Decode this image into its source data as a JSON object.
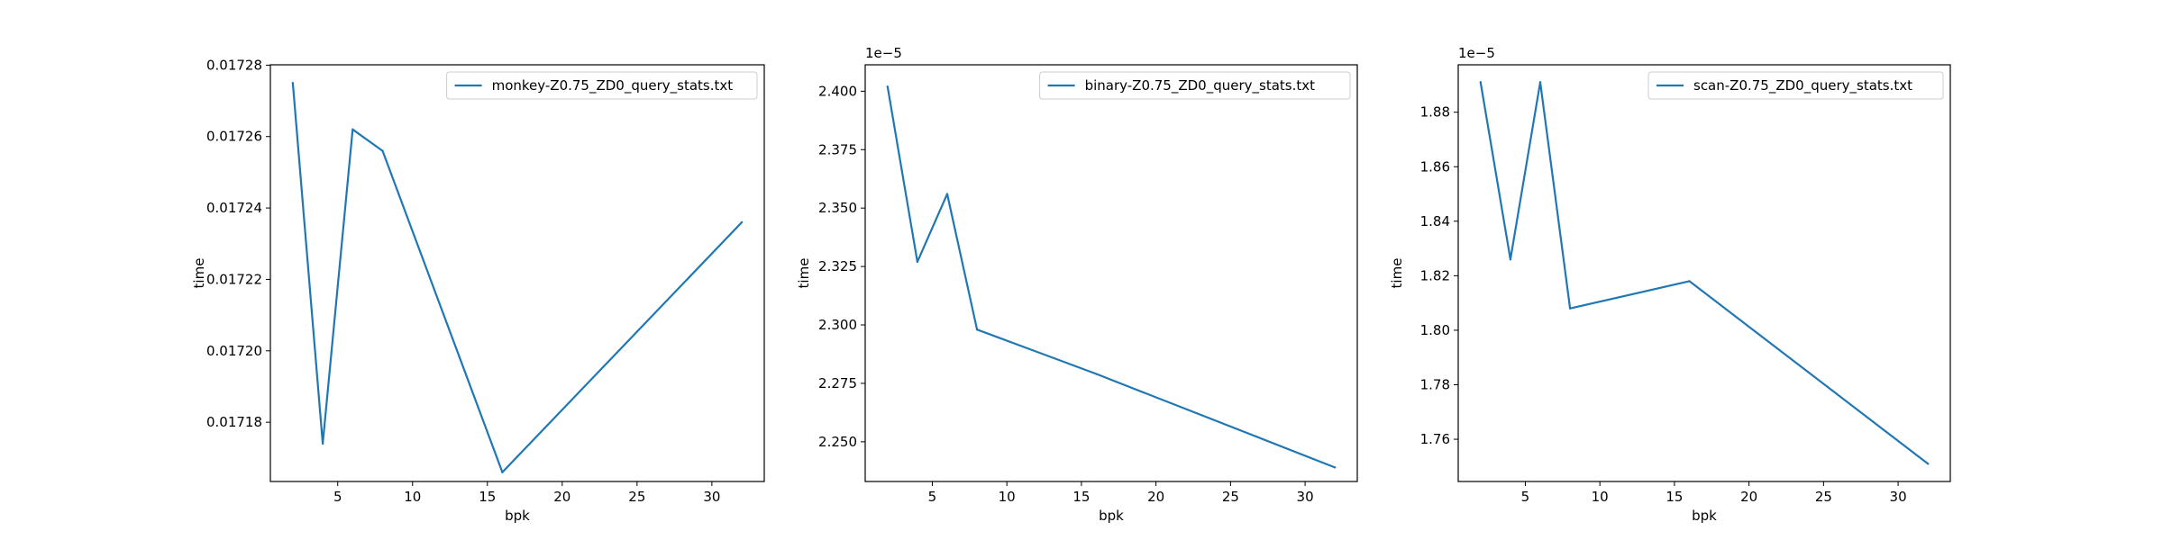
{
  "figure": {
    "background": "#ffffff",
    "line_color": "#1f77b4"
  },
  "chart_data": [
    {
      "type": "line",
      "xlabel": "bpk",
      "ylabel": "time",
      "xlim": [
        0.5,
        33.5
      ],
      "ylim": [
        0.0171634,
        0.0172801
      ],
      "x_ticks": [
        "5",
        "10",
        "15",
        "20",
        "25",
        "30"
      ],
      "x_tick_values": [
        5,
        10,
        15,
        20,
        25,
        30
      ],
      "y_ticks": [
        "0.01718",
        "0.01720",
        "0.01722",
        "0.01724",
        "0.01726",
        "0.01728"
      ],
      "y_tick_values": [
        0.01718,
        0.0172,
        0.01722,
        0.01724,
        0.01726,
        0.01728
      ],
      "offset_text": "",
      "legend_location": "upper right",
      "series": [
        {
          "name": "monkey-Z0.75_ZD0_query_stats.txt",
          "x": [
            2,
            4,
            6,
            8,
            16,
            32
          ],
          "y": [
            0.017275,
            0.017174,
            0.017262,
            0.017256,
            0.017166,
            0.017236
          ]
        }
      ]
    },
    {
      "type": "line",
      "xlabel": "bpk",
      "ylabel": "time",
      "xlim": [
        0.5,
        33.5
      ],
      "ylim": [
        2.233e-05,
        2.4113e-05
      ],
      "x_ticks": [
        "5",
        "10",
        "15",
        "20",
        "25",
        "30"
      ],
      "x_tick_values": [
        5,
        10,
        15,
        20,
        25,
        30
      ],
      "y_ticks": [
        "2.250",
        "2.275",
        "2.300",
        "2.325",
        "2.350",
        "2.375",
        "2.400"
      ],
      "y_tick_values": [
        2.25e-05,
        2.275e-05,
        2.3e-05,
        2.325e-05,
        2.35e-05,
        2.375e-05,
        2.4e-05
      ],
      "offset_text": "1e−5",
      "legend_location": "upper right",
      "series": [
        {
          "name": "binary-Z0.75_ZD0_query_stats.txt",
          "x": [
            2,
            4,
            6,
            8,
            16,
            32
          ],
          "y": [
            2.402e-05,
            2.327e-05,
            2.356e-05,
            2.298e-05,
            2.279e-05,
            2.239e-05
          ]
        }
      ]
    },
    {
      "type": "line",
      "xlabel": "bpk",
      "ylabel": "time",
      "xlim": [
        0.5,
        33.5
      ],
      "ylim": [
        1.7445e-05,
        1.8974e-05
      ],
      "x_ticks": [
        "5",
        "10",
        "15",
        "20",
        "25",
        "30"
      ],
      "x_tick_values": [
        5,
        10,
        15,
        20,
        25,
        30
      ],
      "y_ticks": [
        "1.76",
        "1.78",
        "1.80",
        "1.82",
        "1.84",
        "1.86",
        "1.88"
      ],
      "y_tick_values": [
        1.76e-05,
        1.78e-05,
        1.8e-05,
        1.82e-05,
        1.84e-05,
        1.86e-05,
        1.88e-05
      ],
      "offset_text": "1e−5",
      "legend_location": "upper right",
      "series": [
        {
          "name": "scan-Z0.75_ZD0_query_stats.txt",
          "x": [
            2,
            4,
            6,
            8,
            16,
            32
          ],
          "y": [
            1.891e-05,
            1.826e-05,
            1.891e-05,
            1.808e-05,
            1.818e-05,
            1.751e-05
          ]
        }
      ]
    }
  ]
}
